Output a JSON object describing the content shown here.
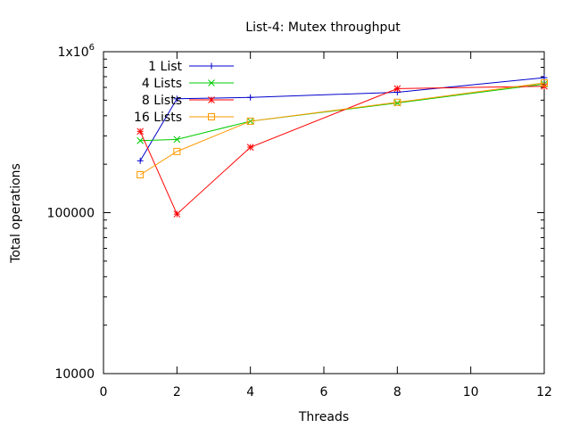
{
  "chart_data": {
    "type": "line",
    "title": "List-4: Mutex throughput",
    "xlabel": "Threads",
    "ylabel": "Total operations",
    "xlim": [
      0,
      12
    ],
    "ylim": [
      10000,
      1000000
    ],
    "yscale": "log",
    "grid": false,
    "legend_position": "top-left",
    "x_ticks": [
      0,
      2,
      4,
      6,
      8,
      10,
      12
    ],
    "x_tick_labels": [
      "0",
      "2",
      "4",
      "6",
      "8",
      "10",
      "12"
    ],
    "y_ticks": [
      10000,
      100000,
      1000000
    ],
    "y_tick_labels": [
      "10000",
      "100000",
      "1x10"
    ],
    "y_tick_label_exponent": "6",
    "series": [
      {
        "name": "1 List",
        "color": "#0000cc",
        "marker": "plus",
        "x": [
          1,
          2,
          4,
          8,
          12
        ],
        "y": [
          210000,
          510000,
          520000,
          560000,
          690000
        ]
      },
      {
        "name": "4 Lists",
        "color": "#00cc00",
        "marker": "cross",
        "x": [
          1,
          2,
          4,
          8,
          12
        ],
        "y": [
          280000,
          285000,
          370000,
          480000,
          630000
        ]
      },
      {
        "name": "8 Lists",
        "color": "#ff0000",
        "marker": "star",
        "x": [
          1,
          2,
          4,
          8,
          12
        ],
        "y": [
          320000,
          98000,
          255000,
          590000,
          610000
        ]
      },
      {
        "name": "16 Lists",
        "color": "#ff9900",
        "marker": "square",
        "x": [
          1,
          2,
          4,
          8,
          12
        ],
        "y": [
          172000,
          240000,
          370000,
          485000,
          640000
        ]
      }
    ]
  }
}
